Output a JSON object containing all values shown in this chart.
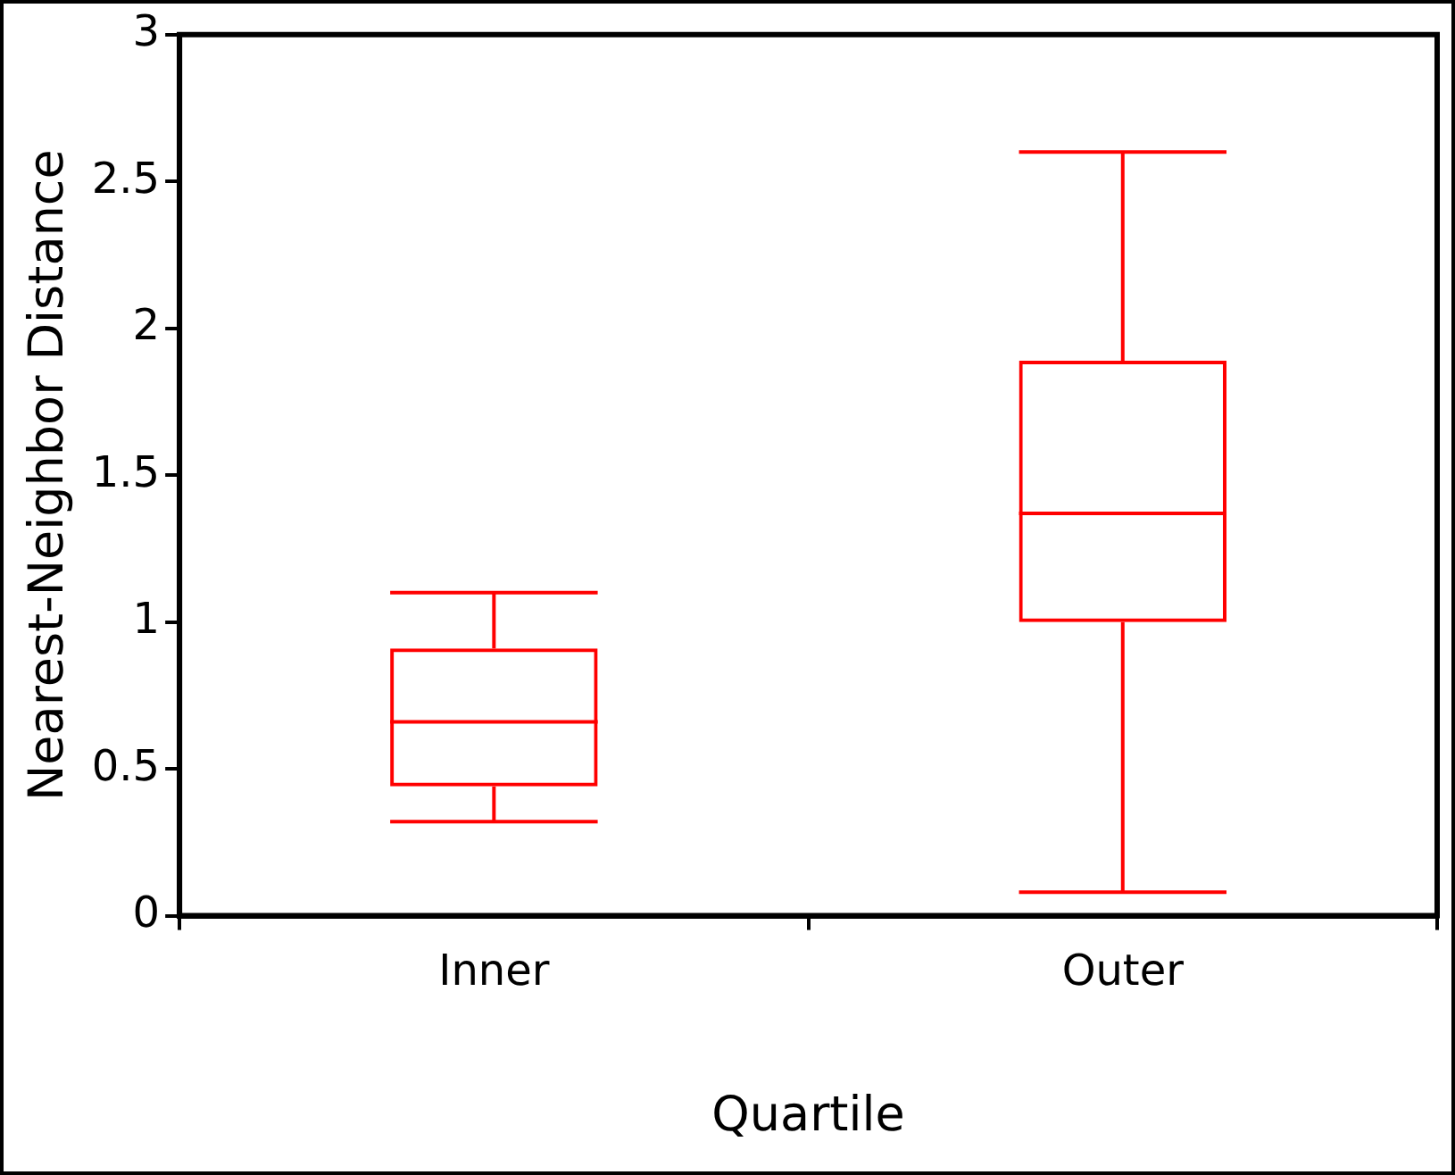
{
  "chart_data": {
    "type": "box",
    "xlabel": "Quartile",
    "ylabel": "Nearest-Neighbor Distance",
    "categories": [
      "Inner",
      "Outer"
    ],
    "color": "#ff0000",
    "boxes": [
      {
        "low": 0.32,
        "q1": 0.44,
        "median": 0.66,
        "q3": 0.91,
        "high": 1.1
      },
      {
        "low": 0.08,
        "q1": 1.0,
        "median": 1.37,
        "q3": 1.89,
        "high": 2.6
      }
    ],
    "ylim": [
      0,
      3
    ],
    "yticks": [
      0,
      0.5,
      1,
      1.5,
      2,
      2.5,
      3
    ]
  }
}
